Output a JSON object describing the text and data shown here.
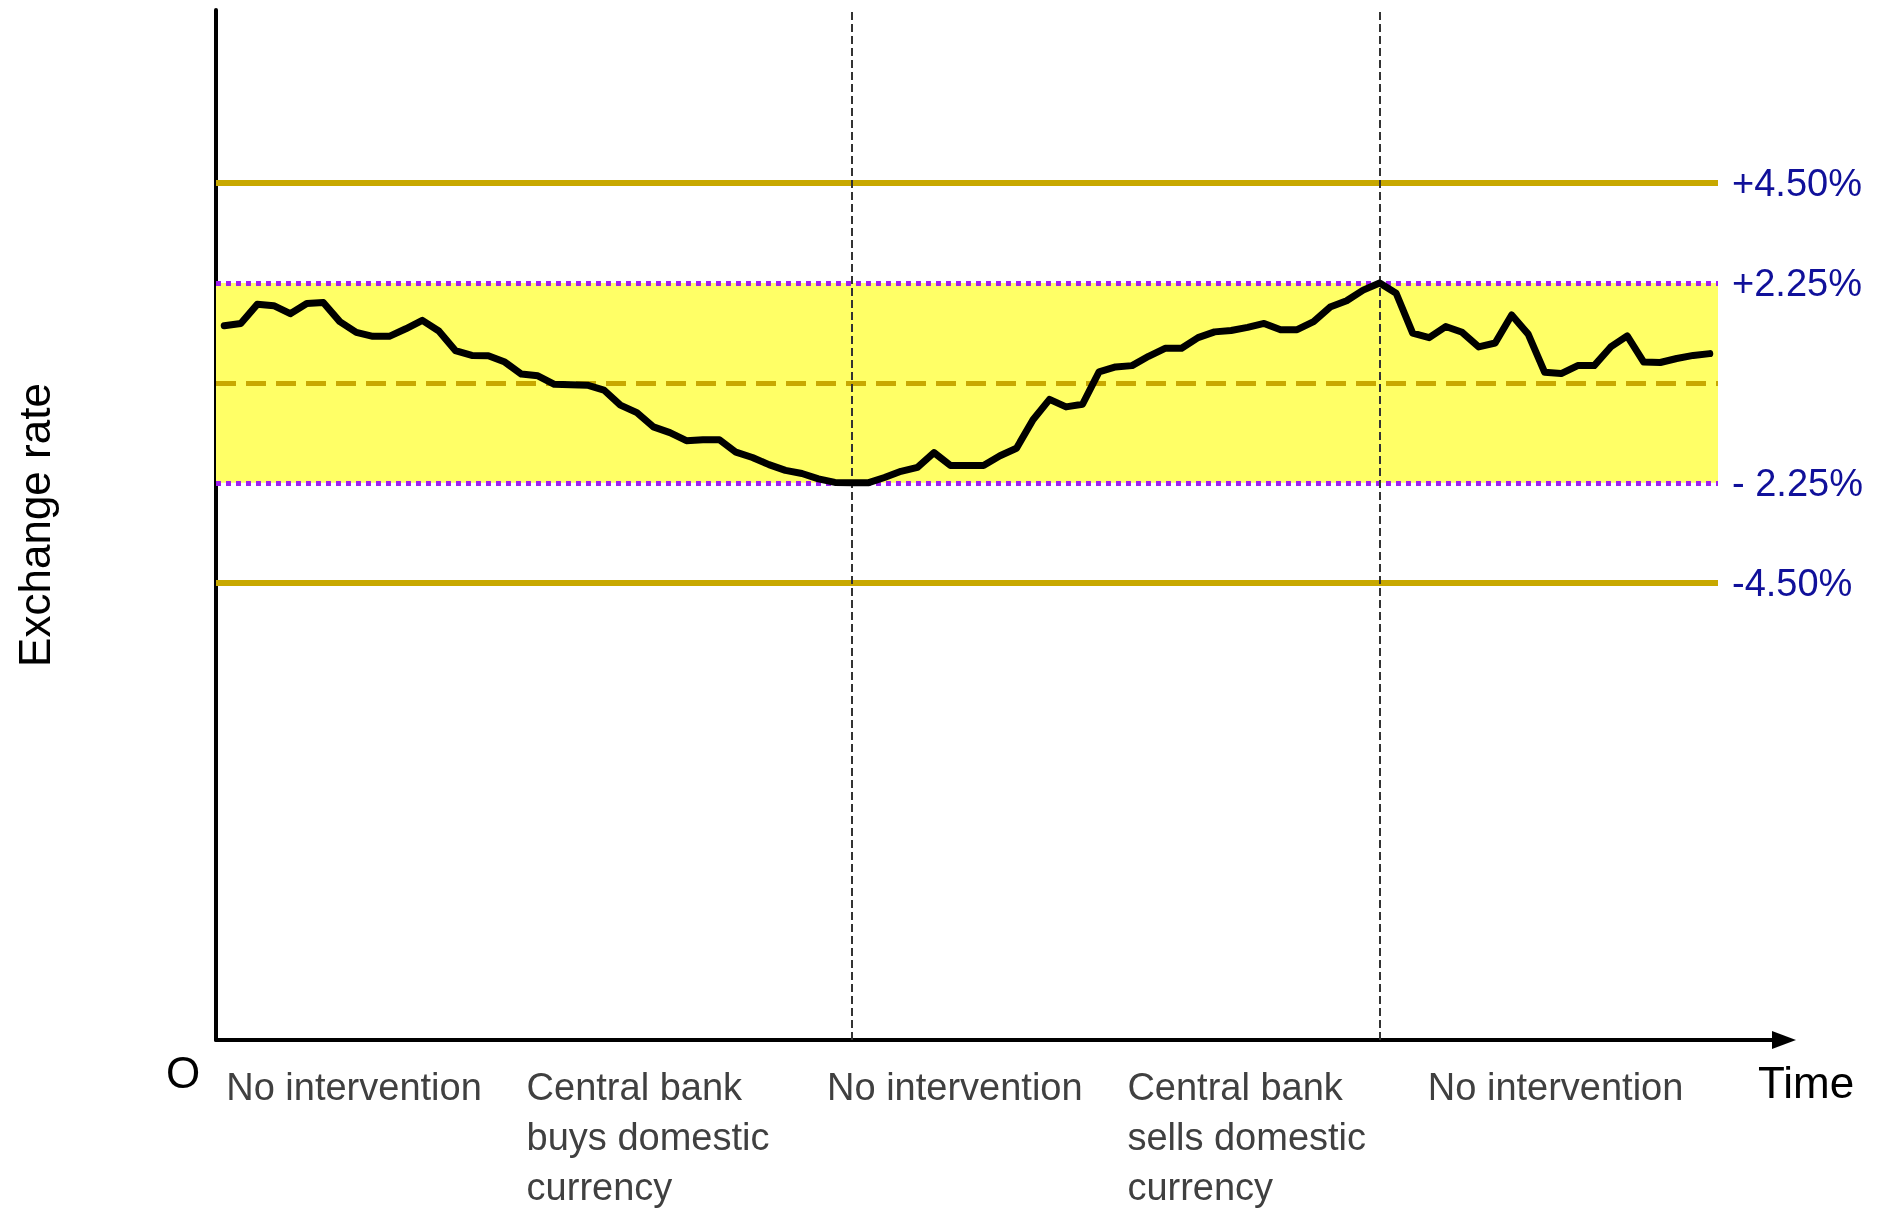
{
  "chart_data": {
    "type": "line",
    "xlabel": "Time",
    "ylabel": "Exchange rate",
    "ylim": [
      -14.8,
      8.4
    ],
    "yticks": [
      {
        "value": 4.5,
        "label": "+4.50%"
      },
      {
        "value": 2.25,
        "label": "+2.25%"
      },
      {
        "value": -2.25,
        "label": "- 2.25%"
      },
      {
        "value": -4.5,
        "label": "-4.50%"
      }
    ],
    "tick_labels": "y",
    "marker": "none",
    "line_style": "solid",
    "categories": [
      null,
      null,
      null,
      null,
      null,
      null,
      null,
      null,
      null,
      null,
      null,
      null,
      null,
      null,
      null,
      null,
      null,
      null,
      null,
      null,
      null,
      null,
      null,
      null,
      null,
      null,
      null,
      null,
      null,
      null,
      null,
      null,
      null,
      null,
      null,
      null,
      null,
      null,
      null,
      null,
      null,
      null,
      null,
      null,
      null,
      null,
      null,
      null,
      null,
      null,
      null,
      null,
      null,
      null,
      null,
      null,
      null,
      null,
      null,
      null,
      null,
      null,
      null,
      null,
      null,
      null,
      null,
      null,
      null,
      null,
      null,
      null,
      null,
      null,
      null,
      null,
      null,
      null,
      null,
      null,
      null,
      null,
      null,
      null,
      null,
      null,
      null,
      null,
      null,
      null,
      null
    ],
    "series": [
      {
        "color": "#000000",
        "values": [
          1.29,
          1.34,
          1.77,
          1.74,
          1.56,
          1.79,
          1.81,
          1.38,
          1.14,
          1.05,
          1.05,
          1.22,
          1.41,
          1.17,
          0.73,
          0.62,
          0.61,
          0.47,
          0.2,
          0.16,
          -0.03,
          -0.04,
          -0.05,
          -0.16,
          -0.5,
          -0.67,
          -0.99,
          -1.12,
          -1.3,
          -1.28,
          -1.28,
          -1.56,
          -1.68,
          -1.84,
          -1.97,
          -2.04,
          -2.16,
          -2.24,
          -2.25,
          -2.25,
          -2.13,
          -1.99,
          -1.9,
          -1.57,
          -1.86,
          -1.86,
          -1.86,
          -1.64,
          -1.47,
          -0.83,
          -0.37,
          -0.54,
          -0.48,
          0.25,
          0.36,
          0.39,
          0.6,
          0.78,
          0.78,
          1.02,
          1.15,
          1.18,
          1.25,
          1.34,
          1.2,
          1.2,
          1.38,
          1.71,
          1.85,
          2.09,
          2.25,
          2.02,
          1.12,
          1.02,
          1.27,
          1.14,
          0.81,
          0.9,
          1.53,
          1.1,
          0.24,
          0.21,
          0.39,
          0.39,
          0.81,
          1.06,
          0.47,
          0.46,
          0.55,
          0.62,
          0.66
        ]
      }
    ],
    "bands": [
      {
        "axis": "y",
        "from": -2.25,
        "to": 2.25,
        "color": "#ffff66"
      }
    ],
    "ref_lines": [
      {
        "axis": "y",
        "value": 4.5,
        "color": "#c8a800",
        "line_style": "solid"
      },
      {
        "axis": "y",
        "value": 2.25,
        "color": "#a020f0",
        "line_style": "dotted"
      },
      {
        "axis": "y",
        "value": 0,
        "color": "#c8a800",
        "line_style": "dashed"
      },
      {
        "axis": "y",
        "value": -2.25,
        "color": "#a020f0",
        "line_style": "dotted"
      },
      {
        "axis": "y",
        "value": -4.5,
        "color": "#c8a800",
        "line_style": "solid"
      }
    ],
    "annotations": [
      "O",
      "No intervention",
      "Central bank buys domestic currency",
      "No intervention",
      "Central bank sells domestic currency",
      "No intervention"
    ]
  }
}
